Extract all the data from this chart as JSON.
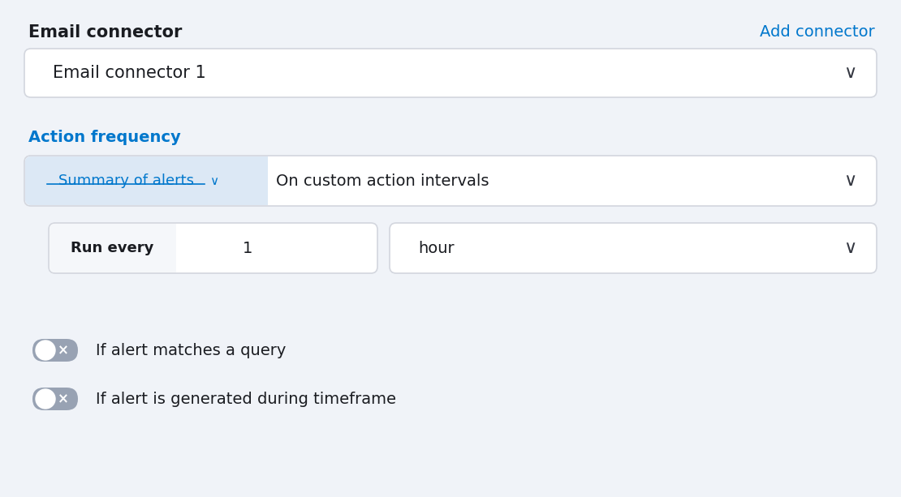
{
  "bg_color": "#f0f3f8",
  "title": "Email connector",
  "add_connector_text": "Add connector",
  "add_connector_color": "#0077cc",
  "connector_box_text": "Email connector 1",
  "action_frequency_label": "Action frequency",
  "action_frequency_color": "#0077cc",
  "summary_tab_text": "Summary of alerts",
  "summary_tab_bg": "#dce8f5",
  "summary_tab_color": "#0077cc",
  "interval_dropdown_text": "On custom action intervals",
  "run_every_label": "Run every",
  "run_every_value": "1",
  "hour_dropdown_text": "hour",
  "toggle1_label": "If alert matches a query",
  "toggle2_label": "If alert is generated during timeframe",
  "box_bg": "#ffffff",
  "box_border": "#d3d6de",
  "chevron_color": "#343741",
  "toggle_track_off": "#98a2b3",
  "toggle_x_color": "#ffffff",
  "run_every_bg": "#f5f7fa",
  "font_color": "#1a1c21"
}
